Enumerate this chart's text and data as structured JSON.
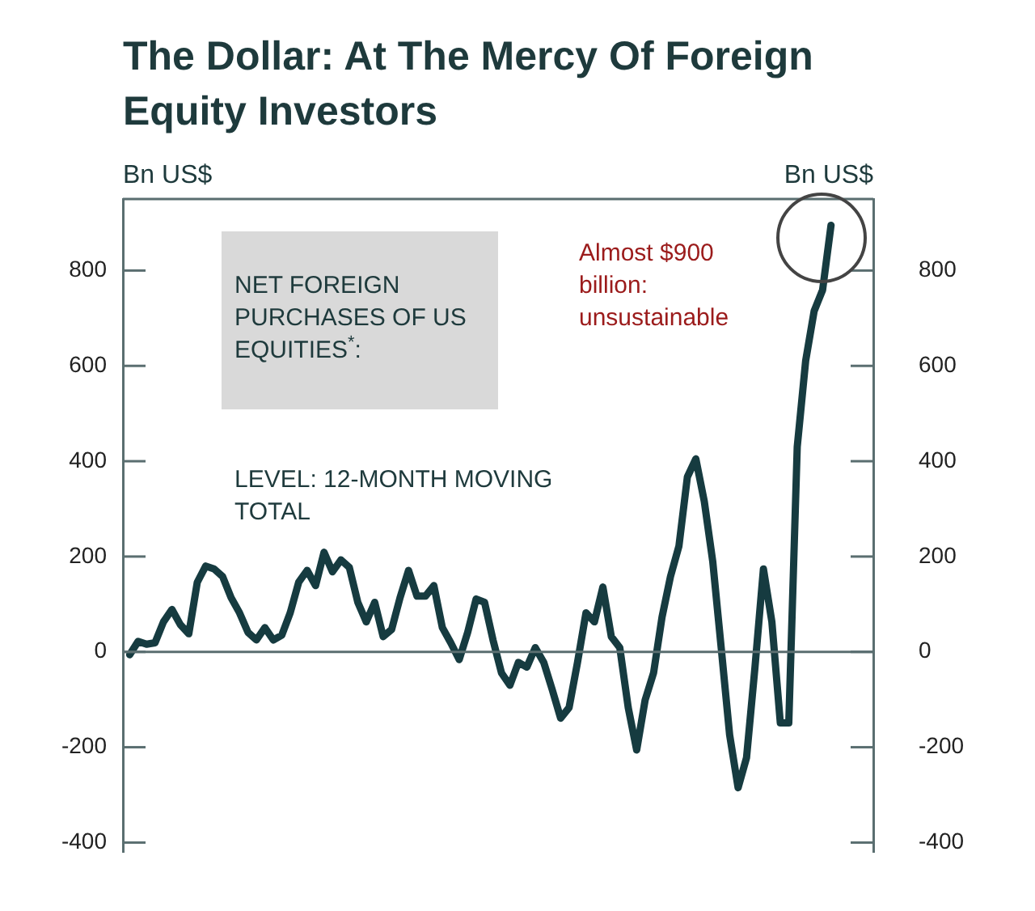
{
  "chart_data": {
    "type": "line",
    "title": "The Dollar: At The Mercy Of Foreign Equity Investors",
    "ylabel": "Bn US$",
    "y2label": "Bn US$",
    "annotations": [
      "NET FOREIGN PURCHASES OF US EQUITIES$^{*}$:",
      "LEVEL: 12-MONTH MOVING TOTAL",
      "Almost $900 billion: unsustainable"
    ],
    "categories": [
      null,
      null,
      null,
      null,
      null,
      null,
      null,
      null,
      null,
      null,
      null,
      null,
      null,
      null,
      null,
      null,
      null,
      null,
      null,
      null,
      null,
      null,
      null,
      null,
      null,
      null,
      null,
      null,
      null,
      null,
      null,
      null,
      null,
      null,
      null,
      null,
      null,
      null,
      null,
      null,
      null,
      null,
      null,
      null,
      null,
      null,
      null,
      null,
      null,
      null,
      null,
      null,
      null,
      null,
      null,
      null,
      null,
      null,
      null,
      null,
      null,
      null,
      null,
      null,
      null,
      null,
      null,
      null,
      null,
      null,
      null,
      null,
      null,
      null,
      null,
      null,
      null,
      null,
      null,
      null,
      null,
      null,
      null,
      null
    ],
    "series": [
      {
        "color": "#163b40",
        "values": [
          -6,
          22,
          16,
          19,
          63,
          89,
          57,
          38,
          146,
          180,
          174,
          158,
          114,
          82,
          41,
          25,
          51,
          25,
          35,
          82,
          146,
          171,
          139,
          209,
          168,
          193,
          177,
          104,
          63,
          104,
          32,
          47,
          114,
          171,
          117,
          117,
          139,
          51,
          19,
          -16,
          41,
          111,
          104,
          25,
          -44,
          -70,
          -22,
          -32,
          9,
          -22,
          -79,
          -139,
          -117,
          -22,
          82,
          63,
          136,
          32,
          9,
          -117,
          -206,
          -101,
          -44,
          73,
          158,
          222,
          367,
          405,
          316,
          190,
          9,
          -174,
          -285,
          -222,
          -32,
          174,
          63,
          -149,
          -149,
          430,
          611,
          715,
          759,
          895
        ]
      }
    ],
    "ylim": [
      -420,
      950
    ],
    "yticks": [
      -400,
      -200,
      0,
      200,
      400,
      600,
      800
    ],
    "y2lim": [
      -420,
      950
    ],
    "y2ticks": [
      -400,
      -200,
      0,
      200,
      400,
      600,
      800
    ],
    "ref_lines": [
      {
        "axis": "y",
        "value": 0,
        "color": "#5a6e70"
      }
    ],
    "tick_labels": "y",
    "marker": "none",
    "line_style": "solid"
  }
}
